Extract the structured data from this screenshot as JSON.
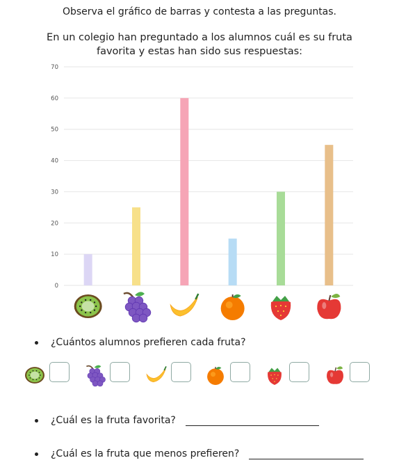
{
  "title": "Observa el gráfico de barras y contesta a las preguntas.",
  "intro_line1": "En un colegio han preguntado a los alumnos cuál es su fruta",
  "intro_line2": "favorita y estas han sido sus respuestas:",
  "chart_data": {
    "type": "bar",
    "categories": [
      "kiwi",
      "grapes",
      "banana",
      "orange",
      "strawberry",
      "apple"
    ],
    "values": [
      10,
      25,
      60,
      15,
      30,
      45
    ],
    "bar_colors": [
      "#dcd6f5",
      "#f7e08a",
      "#f6a5b6",
      "#b7dcf5",
      "#a8dc98",
      "#e8bf8a"
    ],
    "yticks": [
      0,
      10,
      20,
      30,
      40,
      50,
      60,
      70
    ],
    "ylim": [
      0,
      70
    ],
    "grid": true,
    "title": "",
    "xlabel": "",
    "ylabel": ""
  },
  "fruit_icons": [
    "kiwi-icon",
    "grapes-icon",
    "banana-icon",
    "orange-icon",
    "strawberry-icon",
    "apple-icon"
  ],
  "questions": {
    "q1": "¿Cuántos alumnos prefieren cada fruta?",
    "q2": "¿Cuál es la fruta favorita?",
    "q3": "¿Cuál es la fruta que menos prefieren?"
  },
  "colors": {
    "grid": "#e6e6e6",
    "axis_text": "#555555",
    "box_border": "#8fa9a3"
  }
}
